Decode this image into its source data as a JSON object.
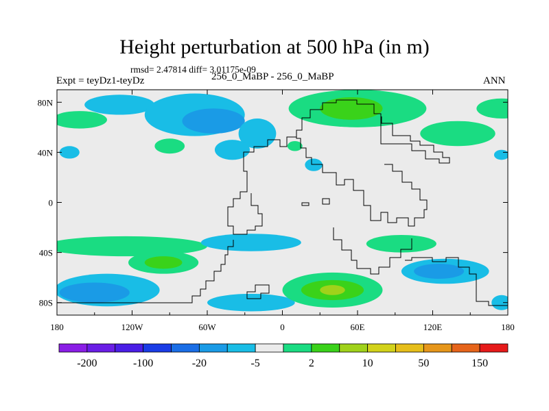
{
  "chart_data": {
    "type": "heatmap",
    "title": "Height perturbation at 500 hPa (in m)",
    "stats_text": "rmsd= 2.47814 diff= 3.01175e-09",
    "subtitle": "256_0_MaBP - 256_0_MaBP",
    "left_label": "Expt = teyDz1-teyDz",
    "right_label": "ANN",
    "x_range": [
      -180,
      180
    ],
    "y_range": [
      -90,
      90
    ],
    "x_ticks": [
      "180",
      "120W",
      "60W",
      "0",
      "60E",
      "120E",
      "180"
    ],
    "y_ticks": [
      "80N",
      "40N",
      "0",
      "40S",
      "80S"
    ],
    "colorbar": {
      "colors": [
        "#8a1ee6",
        "#6a1ee6",
        "#4a1ee6",
        "#1a3ce6",
        "#1a6ee6",
        "#1a9be6",
        "#19bde6",
        "#ebebeb",
        "#1adc82",
        "#3ad21a",
        "#a0d21a",
        "#d2d21a",
        "#e6be1a",
        "#e6961a",
        "#e6641a",
        "#e61a1a"
      ],
      "labels": [
        "-200",
        "-100",
        "-20",
        "-5",
        "2",
        "10",
        "50",
        "150"
      ]
    },
    "anomalies": [
      {
        "name": "north-pacific-west",
        "lon": -130,
        "lat": 78,
        "rx": 28,
        "ry": 8,
        "level": 6
      },
      {
        "name": "north-america-low",
        "lon": -70,
        "lat": 70,
        "rx": 40,
        "ry": 17,
        "level": 6
      },
      {
        "name": "north-america-core",
        "lon": -55,
        "lat": 65,
        "rx": 25,
        "ry": 10,
        "level": 5
      },
      {
        "name": "mid-atlantic-low",
        "lon": -20,
        "lat": 55,
        "rx": 15,
        "ry": 12,
        "level": 6
      },
      {
        "name": "atlantic-blob",
        "lon": -40,
        "lat": 42,
        "rx": 14,
        "ry": 8,
        "level": 6
      },
      {
        "name": "north-pacific-east",
        "lon": -162,
        "lat": 66,
        "rx": 22,
        "ry": 7,
        "level": 8
      },
      {
        "name": "north-pacific-high",
        "lon": -170,
        "lat": 40,
        "rx": 8,
        "ry": 5,
        "level": 6
      },
      {
        "name": "north-america-high",
        "lon": -90,
        "lat": 45,
        "rx": 12,
        "ry": 6,
        "level": 8
      },
      {
        "name": "eurasia-high",
        "lon": 60,
        "lat": 75,
        "rx": 55,
        "ry": 15,
        "level": 8
      },
      {
        "name": "eurasia-core",
        "lon": 55,
        "lat": 75,
        "rx": 25,
        "ry": 9,
        "level": 9
      },
      {
        "name": "east-asia-high",
        "lon": 140,
        "lat": 55,
        "rx": 30,
        "ry": 10,
        "level": 8
      },
      {
        "name": "arctic-high",
        "lon": 175,
        "lat": 75,
        "rx": 20,
        "ry": 8,
        "level": 8
      },
      {
        "name": "central-asia-high",
        "lon": 10,
        "lat": 45,
        "rx": 6,
        "ry": 4,
        "level": 8
      },
      {
        "name": "africa-low",
        "lon": 25,
        "lat": 30,
        "rx": 7,
        "ry": 5,
        "level": 6
      },
      {
        "name": "west-pacific-low",
        "lon": 175,
        "lat": 38,
        "rx": 6,
        "ry": 4,
        "level": 6
      },
      {
        "name": "south-pacific-band",
        "lon": -125,
        "lat": -35,
        "rx": 65,
        "ry": 8,
        "level": 8
      },
      {
        "name": "south-atlantic-band",
        "lon": -25,
        "lat": -32,
        "rx": 40,
        "ry": 7,
        "level": 6
      },
      {
        "name": "southern-high-pacific",
        "lon": -95,
        "lat": -48,
        "rx": 28,
        "ry": 9,
        "level": 8
      },
      {
        "name": "southern-high-core",
        "lon": -95,
        "lat": -48,
        "rx": 15,
        "ry": 5,
        "level": 9
      },
      {
        "name": "south-pacific-low",
        "lon": -140,
        "lat": -70,
        "rx": 42,
        "ry": 13,
        "level": 6
      },
      {
        "name": "south-pacific-low-core",
        "lon": -150,
        "lat": -72,
        "rx": 28,
        "ry": 8,
        "level": 5
      },
      {
        "name": "southern-ocean-low",
        "lon": -25,
        "lat": -80,
        "rx": 35,
        "ry": 7,
        "level": 6
      },
      {
        "name": "indian-high",
        "lon": 40,
        "lat": -70,
        "rx": 40,
        "ry": 14,
        "level": 8
      },
      {
        "name": "indian-high-core",
        "lon": 40,
        "lat": -70,
        "rx": 25,
        "ry": 8,
        "level": 9
      },
      {
        "name": "indian-high-peak",
        "lon": 40,
        "lat": -70,
        "rx": 10,
        "ry": 4,
        "level": 10
      },
      {
        "name": "indian-ocean-high",
        "lon": 95,
        "lat": -33,
        "rx": 28,
        "ry": 7,
        "level": 8
      },
      {
        "name": "australia-low",
        "lon": 130,
        "lat": -55,
        "rx": 35,
        "ry": 10,
        "level": 6
      },
      {
        "name": "australia-low-core",
        "lon": 125,
        "lat": -55,
        "rx": 20,
        "ry": 6,
        "level": 5
      },
      {
        "name": "pacific-southeast-low",
        "lon": 175,
        "lat": -80,
        "rx": 8,
        "ry": 6,
        "level": 6
      }
    ]
  }
}
